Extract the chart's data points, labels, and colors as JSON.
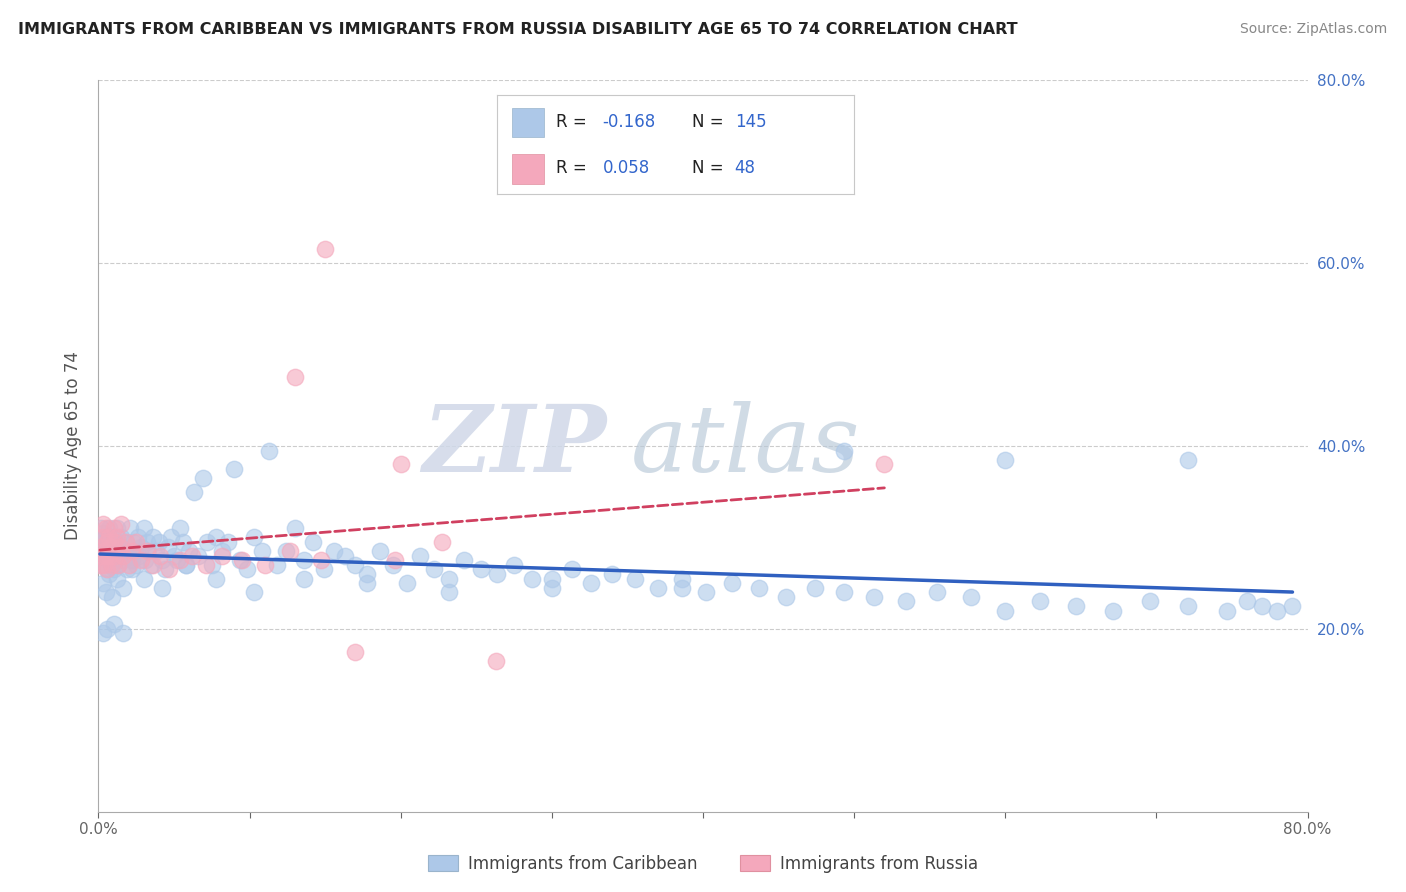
{
  "title": "IMMIGRANTS FROM CARIBBEAN VS IMMIGRANTS FROM RUSSIA DISABILITY AGE 65 TO 74 CORRELATION CHART",
  "source": "Source: ZipAtlas.com",
  "ylabel": "Disability Age 65 to 74",
  "xlim": [
    0.0,
    0.8
  ],
  "ylim": [
    0.0,
    0.8
  ],
  "caribbean_color": "#adc8e8",
  "russia_color": "#f4a8bc",
  "caribbean_line_color": "#3060c0",
  "russia_line_color": "#d04060",
  "legend_R_caribbean": "-0.168",
  "legend_N_caribbean": "145",
  "legend_R_russia": "0.058",
  "legend_N_russia": "48",
  "watermark_zip": "ZIP",
  "watermark_atlas": "atlas",
  "caribbean_x": [
    0.001,
    0.002,
    0.003,
    0.003,
    0.004,
    0.004,
    0.005,
    0.005,
    0.006,
    0.006,
    0.007,
    0.007,
    0.008,
    0.008,
    0.009,
    0.009,
    0.01,
    0.01,
    0.011,
    0.011,
    0.012,
    0.012,
    0.013,
    0.013,
    0.014,
    0.015,
    0.015,
    0.016,
    0.017,
    0.018,
    0.019,
    0.02,
    0.021,
    0.022,
    0.023,
    0.024,
    0.025,
    0.026,
    0.027,
    0.028,
    0.03,
    0.031,
    0.032,
    0.033,
    0.035,
    0.036,
    0.038,
    0.04,
    0.042,
    0.044,
    0.046,
    0.048,
    0.05,
    0.052,
    0.054,
    0.056,
    0.058,
    0.06,
    0.063,
    0.066,
    0.069,
    0.072,
    0.075,
    0.078,
    0.082,
    0.086,
    0.09,
    0.094,
    0.098,
    0.103,
    0.108,
    0.113,
    0.118,
    0.124,
    0.13,
    0.136,
    0.142,
    0.149,
    0.156,
    0.163,
    0.17,
    0.178,
    0.186,
    0.195,
    0.204,
    0.213,
    0.222,
    0.232,
    0.242,
    0.253,
    0.264,
    0.275,
    0.287,
    0.3,
    0.313,
    0.326,
    0.34,
    0.355,
    0.37,
    0.386,
    0.402,
    0.419,
    0.437,
    0.455,
    0.474,
    0.493,
    0.513,
    0.534,
    0.555,
    0.577,
    0.6,
    0.623,
    0.647,
    0.671,
    0.696,
    0.721,
    0.747,
    0.76,
    0.77,
    0.78,
    0.79,
    0.003,
    0.005,
    0.007,
    0.009,
    0.012,
    0.016,
    0.022,
    0.03,
    0.042,
    0.058,
    0.078,
    0.103,
    0.136,
    0.178,
    0.232,
    0.3,
    0.386,
    0.493,
    0.6,
    0.721,
    0.003,
    0.006,
    0.01,
    0.016
  ],
  "caribbean_y": [
    0.29,
    0.31,
    0.27,
    0.305,
    0.285,
    0.295,
    0.275,
    0.3,
    0.28,
    0.265,
    0.295,
    0.31,
    0.285,
    0.27,
    0.3,
    0.29,
    0.28,
    0.265,
    0.295,
    0.275,
    0.31,
    0.285,
    0.295,
    0.27,
    0.28,
    0.3,
    0.29,
    0.275,
    0.285,
    0.295,
    0.265,
    0.28,
    0.31,
    0.275,
    0.295,
    0.285,
    0.27,
    0.3,
    0.28,
    0.29,
    0.31,
    0.275,
    0.295,
    0.285,
    0.27,
    0.3,
    0.285,
    0.295,
    0.275,
    0.265,
    0.29,
    0.3,
    0.28,
    0.275,
    0.31,
    0.295,
    0.27,
    0.285,
    0.35,
    0.28,
    0.365,
    0.295,
    0.27,
    0.3,
    0.285,
    0.295,
    0.375,
    0.275,
    0.265,
    0.3,
    0.285,
    0.395,
    0.27,
    0.285,
    0.31,
    0.275,
    0.295,
    0.265,
    0.285,
    0.28,
    0.27,
    0.26,
    0.285,
    0.27,
    0.25,
    0.28,
    0.265,
    0.255,
    0.275,
    0.265,
    0.26,
    0.27,
    0.255,
    0.245,
    0.265,
    0.25,
    0.26,
    0.255,
    0.245,
    0.255,
    0.24,
    0.25,
    0.245,
    0.235,
    0.245,
    0.24,
    0.235,
    0.23,
    0.24,
    0.235,
    0.22,
    0.23,
    0.225,
    0.22,
    0.23,
    0.225,
    0.22,
    0.23,
    0.225,
    0.22,
    0.225,
    0.25,
    0.24,
    0.26,
    0.235,
    0.255,
    0.245,
    0.265,
    0.255,
    0.245,
    0.27,
    0.255,
    0.24,
    0.255,
    0.25,
    0.24,
    0.255,
    0.245,
    0.395,
    0.385,
    0.385,
    0.195,
    0.2,
    0.205,
    0.195
  ],
  "russia_x": [
    0.001,
    0.002,
    0.002,
    0.003,
    0.003,
    0.004,
    0.004,
    0.005,
    0.005,
    0.006,
    0.006,
    0.007,
    0.007,
    0.008,
    0.009,
    0.01,
    0.01,
    0.011,
    0.012,
    0.013,
    0.014,
    0.015,
    0.016,
    0.018,
    0.02,
    0.022,
    0.025,
    0.028,
    0.032,
    0.036,
    0.041,
    0.047,
    0.054,
    0.062,
    0.071,
    0.082,
    0.095,
    0.11,
    0.127,
    0.147,
    0.17,
    0.196,
    0.227,
    0.263,
    0.15,
    0.2,
    0.13,
    0.52
  ],
  "russia_y": [
    0.27,
    0.28,
    0.29,
    0.3,
    0.315,
    0.285,
    0.27,
    0.31,
    0.28,
    0.295,
    0.265,
    0.3,
    0.28,
    0.29,
    0.27,
    0.31,
    0.295,
    0.28,
    0.3,
    0.27,
    0.29,
    0.315,
    0.28,
    0.295,
    0.27,
    0.285,
    0.295,
    0.275,
    0.285,
    0.27,
    0.28,
    0.265,
    0.275,
    0.28,
    0.27,
    0.28,
    0.275,
    0.27,
    0.285,
    0.275,
    0.175,
    0.275,
    0.295,
    0.165,
    0.615,
    0.38,
    0.475,
    0.38
  ]
}
